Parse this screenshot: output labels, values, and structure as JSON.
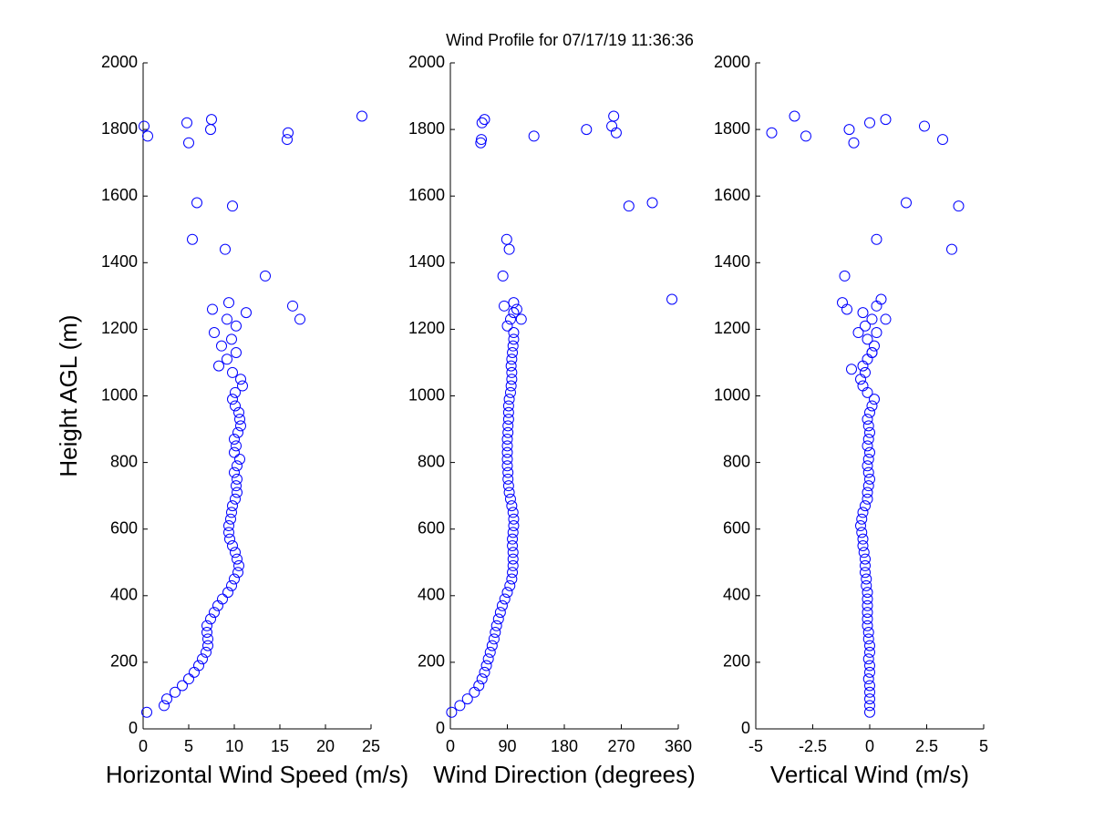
{
  "chart_data": [
    {
      "type": "scatter",
      "title": "Wind Profile for  07/17/19 11:36:36",
      "xlabel": "Horizontal Wind Speed (m/s)",
      "ylabel": "Height AGL (m)",
      "color": "#0000ff",
      "xlim": [
        0,
        25
      ],
      "xticks": [
        0,
        5,
        10,
        15,
        20,
        25
      ],
      "ylim": [
        0,
        2000
      ],
      "yticks": [
        0,
        200,
        400,
        600,
        800,
        1000,
        1200,
        1400,
        1600,
        1800,
        2000
      ],
      "x": [
        0.4,
        2.3,
        2.6,
        3.5,
        4.3,
        5.0,
        5.6,
        6.1,
        6.5,
        6.9,
        7.1,
        7.1,
        7.0,
        7.0,
        7.4,
        7.8,
        8.2,
        8.7,
        9.3,
        9.7,
        10.0,
        10.4,
        10.5,
        10.3,
        10.1,
        9.8,
        9.5,
        9.4,
        9.4,
        9.6,
        9.7,
        9.8,
        10.1,
        10.3,
        10.2,
        10.3,
        10.0,
        10.3,
        10.6,
        10.0,
        10.2,
        10.0,
        10.4,
        10.7,
        10.6,
        10.5,
        10.1,
        9.8,
        10.1,
        10.9,
        10.7,
        9.8,
        8.3,
        9.2,
        10.2,
        8.6,
        9.7,
        7.8,
        10.2,
        9.2,
        11.3,
        17.2,
        7.6,
        16.4,
        9.4,
        13.4,
        9.0,
        5.4,
        9.8,
        5.9,
        5.0,
        15.8,
        0.5,
        15.9,
        7.4,
        0.1,
        4.8,
        7.5,
        24.0
      ],
      "y": [
        50,
        70,
        90,
        110,
        130,
        150,
        170,
        190,
        210,
        230,
        250,
        270,
        290,
        310,
        330,
        350,
        370,
        390,
        410,
        430,
        450,
        470,
        490,
        510,
        530,
        550,
        570,
        590,
        610,
        630,
        650,
        670,
        690,
        710,
        730,
        750,
        770,
        790,
        810,
        830,
        850,
        870,
        890,
        910,
        930,
        950,
        970,
        990,
        1010,
        1030,
        1050,
        1070,
        1090,
        1110,
        1130,
        1150,
        1170,
        1190,
        1210,
        1230,
        1250,
        1230,
        1260,
        1270,
        1280,
        1360,
        1440,
        1470,
        1570,
        1580,
        1760,
        1770,
        1780,
        1790,
        1800,
        1810,
        1820,
        1830,
        1840
      ]
    },
    {
      "type": "scatter",
      "xlabel": "Wind Direction (degrees)",
      "color": "#0000ff",
      "xlim": [
        0,
        360
      ],
      "xticks": [
        0,
        90,
        180,
        270,
        360
      ],
      "ylim": [
        0,
        2000
      ],
      "yticks": [
        0,
        200,
        400,
        600,
        800,
        1000,
        1200,
        1400,
        1600,
        1800,
        2000
      ],
      "x": [
        2,
        15,
        27,
        38,
        45,
        50,
        54,
        57,
        60,
        63,
        66,
        69,
        71,
        73,
        76,
        79,
        82,
        86,
        90,
        94,
        97,
        98,
        99,
        99,
        99,
        98,
        98,
        99,
        100,
        100,
        99,
        97,
        95,
        93,
        92,
        91,
        91,
        90,
        90,
        90,
        90,
        90,
        91,
        91,
        92,
        92,
        92,
        93,
        95,
        96,
        97,
        97,
        96,
        97,
        98,
        99,
        100,
        100,
        90,
        95,
        100,
        112,
        105,
        85,
        100,
        350,
        83,
        93,
        89,
        282,
        319,
        48,
        49,
        132,
        262,
        215,
        255,
        50,
        54,
        258
      ],
      "y": [
        50,
        70,
        90,
        110,
        130,
        150,
        170,
        190,
        210,
        230,
        250,
        270,
        290,
        310,
        330,
        350,
        370,
        390,
        410,
        430,
        450,
        470,
        490,
        510,
        530,
        550,
        570,
        590,
        610,
        630,
        650,
        670,
        690,
        710,
        730,
        750,
        770,
        790,
        810,
        830,
        850,
        870,
        890,
        910,
        930,
        950,
        970,
        990,
        1010,
        1030,
        1050,
        1070,
        1090,
        1110,
        1130,
        1150,
        1170,
        1190,
        1210,
        1230,
        1250,
        1230,
        1260,
        1270,
        1280,
        1290,
        1360,
        1440,
        1470,
        1570,
        1580,
        1760,
        1770,
        1780,
        1790,
        1800,
        1810,
        1820,
        1830,
        1840
      ]
    },
    {
      "type": "scatter",
      "xlabel": "Vertical Wind (m/s)",
      "color": "#0000ff",
      "xlim": [
        -5,
        5
      ],
      "xticks": [
        -5,
        -2.5,
        0,
        2.5,
        5
      ],
      "ylim": [
        0,
        2000
      ],
      "yticks": [
        0,
        200,
        400,
        600,
        800,
        1000,
        1200,
        1400,
        1600,
        1800,
        2000
      ],
      "x": [
        0,
        0,
        0,
        0,
        0,
        -0.05,
        0,
        0,
        -0.05,
        0,
        0,
        -0.05,
        -0.05,
        -0.1,
        -0.1,
        -0.1,
        -0.1,
        -0.1,
        -0.1,
        -0.15,
        -0.15,
        -0.2,
        -0.2,
        -0.2,
        -0.25,
        -0.3,
        -0.3,
        -0.35,
        -0.4,
        -0.35,
        -0.3,
        -0.2,
        -0.1,
        -0.1,
        -0.05,
        0,
        -0.05,
        -0.1,
        -0.05,
        0,
        -0.1,
        -0.05,
        0,
        -0.05,
        -0.1,
        0,
        0.1,
        0.2,
        -0.1,
        -0.3,
        -0.4,
        -0.2,
        -0.3,
        -0.1,
        0.1,
        0.2,
        -0.1,
        0.3,
        -0.2,
        0.1,
        -0.3,
        -0.8,
        0.1,
        -0.5,
        0.7,
        -1.0,
        0.3,
        -1.2,
        0.5,
        -1.1,
        3.6,
        0.3,
        3.9,
        1.6,
        -0.7,
        3.2,
        -2.8,
        -4.3,
        -0.9,
        2.4,
        0.0,
        0.7,
        -3.3
      ],
      "y": [
        50,
        70,
        90,
        110,
        130,
        150,
        170,
        190,
        210,
        230,
        250,
        270,
        290,
        310,
        330,
        350,
        370,
        390,
        410,
        430,
        450,
        470,
        490,
        510,
        530,
        550,
        570,
        590,
        610,
        630,
        650,
        670,
        690,
        710,
        730,
        750,
        770,
        790,
        810,
        830,
        850,
        870,
        890,
        910,
        930,
        950,
        970,
        990,
        1010,
        1030,
        1050,
        1070,
        1090,
        1110,
        1130,
        1150,
        1170,
        1190,
        1210,
        1230,
        1250,
        1080,
        1130,
        1190,
        1230,
        1260,
        1270,
        1280,
        1290,
        1360,
        1440,
        1470,
        1570,
        1580,
        1760,
        1770,
        1780,
        1790,
        1800,
        1810,
        1820,
        1830,
        1840
      ]
    }
  ]
}
